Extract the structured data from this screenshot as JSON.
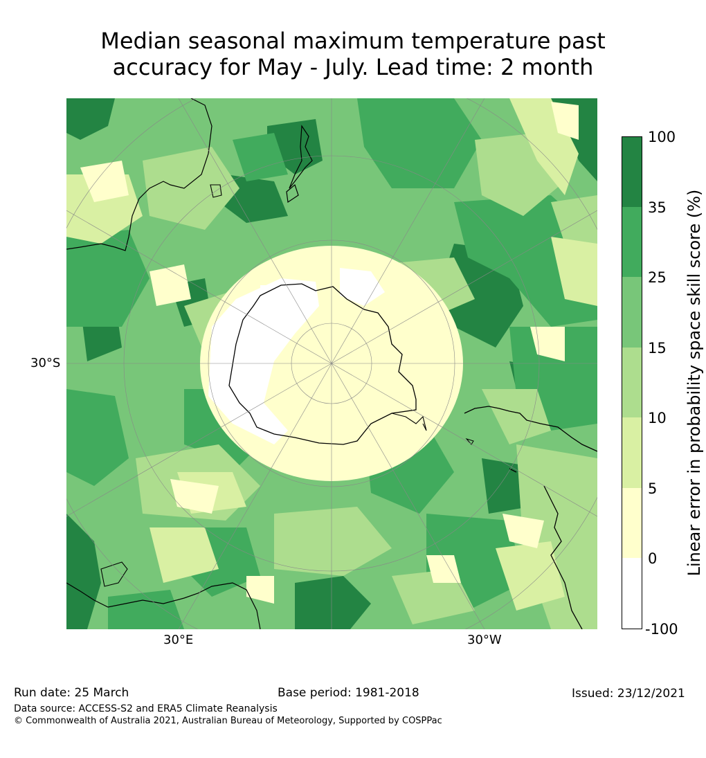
{
  "title_line1": "Median seasonal maximum temperature past",
  "title_line2": "accuracy for May - July. Lead time: 2 month",
  "map": {
    "lat_label": "30°S",
    "lon_labels": [
      "30°E",
      "30°W"
    ],
    "colors": {
      "ocean_deep": "#238443",
      "ocean_mid": "#41ab5d",
      "ocean_light": "#78c679",
      "pale_green": "#addd8e",
      "yellow_green": "#d9f0a3",
      "cream": "#ffffcc",
      "white": "#ffffff"
    }
  },
  "colorbar": {
    "label": "Linear error in probability space skill score (%)",
    "ticks": [
      "100",
      "35",
      "25",
      "15",
      "10",
      "5",
      "0",
      "-100"
    ],
    "bands": [
      {
        "range": "35-100",
        "color": "#238443"
      },
      {
        "range": "25-35",
        "color": "#41ab5d"
      },
      {
        "range": "15-25",
        "color": "#78c679"
      },
      {
        "range": "10-15",
        "color": "#addd8e"
      },
      {
        "range": "5-10",
        "color": "#d9f0a3"
      },
      {
        "range": "0-5",
        "color": "#ffffcc"
      },
      {
        "range": "-100-0",
        "color": "#ffffff"
      }
    ]
  },
  "footer": {
    "run_date": "Run date: 25 March",
    "base_period": "Base period: 1981-2018",
    "issued": "Issued: 23/12/2021",
    "data_source": "Data source: ACCESS-S2 and ERA5 Climate Reanalysis",
    "copyright": "© Commonwealth of Australia 2021, Australian Bureau of Meteorology, Supported by COSPPac"
  }
}
